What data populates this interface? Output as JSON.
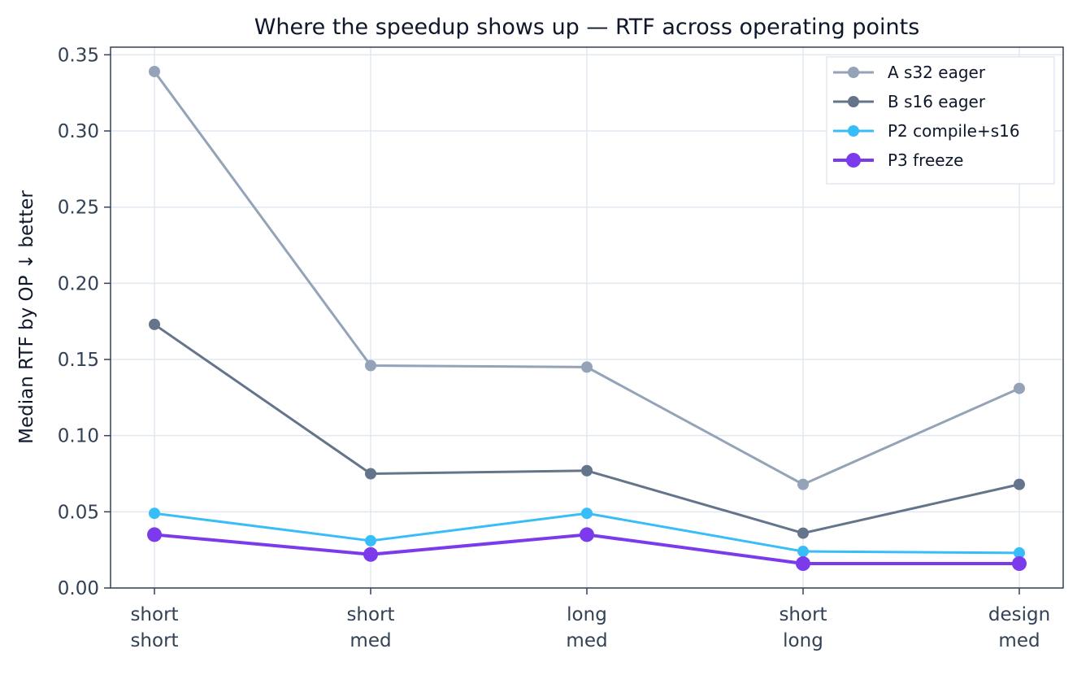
{
  "chart_data": {
    "type": "line",
    "title": "Where the speedup shows up — RTF across operating points",
    "xlabel": "",
    "ylabel": "Median RTF by OP  ↓ better",
    "categories": [
      [
        "short",
        "short"
      ],
      [
        "short",
        "med"
      ],
      [
        "long",
        "med"
      ],
      [
        "short",
        "long"
      ],
      [
        "design",
        "med"
      ]
    ],
    "ylim": [
      0,
      0.355
    ],
    "yticks": [
      0.0,
      0.05,
      0.1,
      0.15,
      0.2,
      0.25,
      0.3,
      0.35
    ],
    "ytick_labels": [
      "0.00",
      "0.05",
      "0.10",
      "0.15",
      "0.20",
      "0.25",
      "0.30",
      "0.35"
    ],
    "grid": true,
    "legend_position": "top-right",
    "series": [
      {
        "name": "A s32 eager",
        "color": "#94a3b8",
        "emphasis": false,
        "values": [
          0.339,
          0.146,
          0.145,
          0.068,
          0.131
        ]
      },
      {
        "name": "B s16 eager",
        "color": "#64748b",
        "emphasis": false,
        "values": [
          0.173,
          0.075,
          0.077,
          0.036,
          0.068
        ]
      },
      {
        "name": "P2 compile+s16",
        "color": "#38bdf8",
        "emphasis": false,
        "values": [
          0.049,
          0.031,
          0.049,
          0.024,
          0.023
        ]
      },
      {
        "name": "P3 freeze",
        "color": "#7c3aed",
        "emphasis": true,
        "values": [
          0.035,
          0.022,
          0.035,
          0.016,
          0.016
        ]
      }
    ]
  }
}
